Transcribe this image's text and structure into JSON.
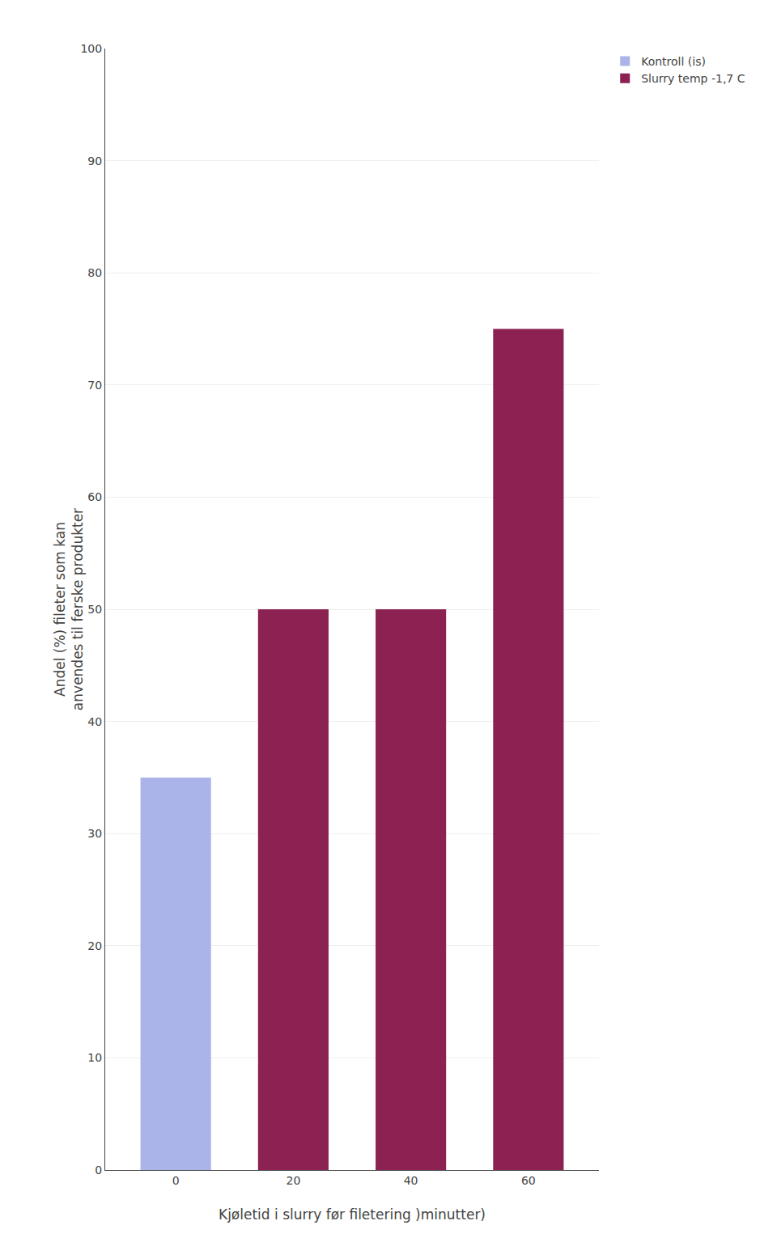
{
  "chart_data": {
    "type": "bar",
    "categories": [
      0,
      20,
      40,
      60
    ],
    "series": [
      {
        "name": "Kontroll (is)",
        "color": "#aab4e8",
        "values": [
          35,
          null,
          null,
          null
        ]
      },
      {
        "name": "Slurry temp -1,7 C",
        "color": "#8b2252",
        "values": [
          null,
          50,
          50,
          75
        ]
      }
    ],
    "xlabel": "Kjøletid i slurry før filetering )minutter)",
    "ylabel": "Andel (%) fileter som kan\nanvendes til ferske produkter",
    "ylim": [
      0,
      100
    ],
    "yticks": [
      0,
      10,
      20,
      30,
      40,
      50,
      60,
      70,
      80,
      90,
      100
    ],
    "grid": true,
    "legend": "upper right"
  }
}
